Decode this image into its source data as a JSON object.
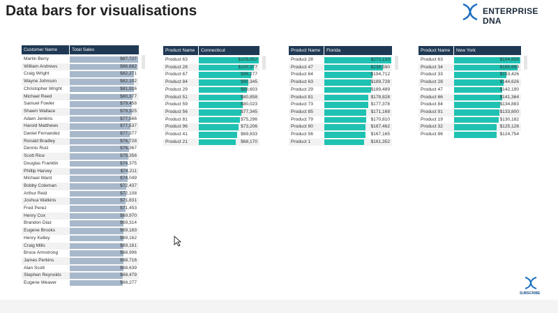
{
  "header": {
    "title": "Data bars for visualisations",
    "logo": "ENTERPRISE DNA",
    "subscribe": "SUBSCRIBE"
  },
  "tables": [
    {
      "columns": [
        "Customer Name",
        "Total Sales"
      ],
      "bar_color": "#a7b8cb",
      "categories": [
        "Martin Berry",
        "William Andrews",
        "Craig Wright",
        "Wayne Johnson",
        "Christopher Wright",
        "Michael Reed",
        "Samuel Fowler",
        "Shawn Wallace",
        "Adam Jenkins",
        "Harold Matthews",
        "Daniel Fernandez",
        "Ronald Bradley",
        "Dennis Ruiz",
        "Scott Rice",
        "Douglas Franklin",
        "Phillip Harvey",
        "Michael Ward",
        "Bobby Coleman",
        "Arthur Reid",
        "Joshua Watkins",
        "Fred Perez",
        "Henry Cox",
        "Brandon Diaz",
        "Eugene Brooks",
        "Henry Kelley",
        "Craig Mills",
        "Bruce Armstrong",
        "James Perkins",
        "Alan Scott",
        "Stephen Reynolds",
        "Eugene Weaver"
      ],
      "values": [
        87727,
        86682,
        82271,
        82102,
        81916,
        80377,
        79458,
        79325,
        77566,
        77537,
        77377,
        76728,
        76367,
        75356,
        74375,
        74211,
        74049,
        72437,
        72108,
        71831,
        71453,
        69970,
        69314,
        69183,
        69162,
        69161,
        68996,
        68716,
        68639,
        68479,
        68277
      ],
      "value_labels": [
        "$87,727",
        "$86,682",
        "$82,271",
        "$82,102",
        "$81,916",
        "$80,377",
        "$79,458",
        "$79,325",
        "$77,566",
        "$77,537",
        "$77,377",
        "$76,728",
        "$76,367",
        "$75,356",
        "$74,375",
        "$74,211",
        "$74,049",
        "$72,437",
        "$72,108",
        "$71,831",
        "$71,453",
        "$69,970",
        "$69,314",
        "$69,183",
        "$69,162",
        "$69,161",
        "$68,996",
        "$68,716",
        "$68,639",
        "$68,479",
        "$68,277"
      ]
    },
    {
      "columns": [
        "Product Name",
        "Connecticut"
      ],
      "bar_color": "#1fc2b2",
      "categories": [
        "Product 63",
        "Product 28",
        "Product 67",
        "Product 84",
        "Product 29",
        "Product 51",
        "Product 59",
        "Product 56",
        "Product 81",
        "Product 96",
        "Product 41",
        "Product 21"
      ],
      "values": [
        109852,
        100377,
        96277,
        90345,
        88603,
        80858,
        80023,
        77345,
        75296,
        73206,
        69833,
        68170
      ],
      "value_labels": [
        "$109,852",
        "$100,377",
        "$96,277",
        "$90,345",
        "$88,603",
        "$80,858",
        "$80,023",
        "$77,345",
        "$75,296",
        "$73,206",
        "$69,833",
        "$68,170"
      ]
    },
    {
      "columns": [
        "Product Name",
        "Florida"
      ],
      "bar_color": "#1fc2b2",
      "categories": [
        "Product 28",
        "Product 47",
        "Product 64",
        "Product 63",
        "Product 29",
        "Product 81",
        "Product 73",
        "Product 85",
        "Product 79",
        "Product 90",
        "Product 56",
        "Product 1"
      ],
      "values": [
        272133,
        238590,
        194712,
        189728,
        189489,
        178828,
        177378,
        171168,
        170810,
        167462,
        167165,
        161352
      ],
      "value_labels": [
        "$272,133",
        "$238,590",
        "$194,712",
        "$189,728",
        "$189,489",
        "$178,828",
        "$177,378",
        "$171,168",
        "$170,810",
        "$167,462",
        "$167,165",
        "$161,352"
      ]
    },
    {
      "columns": [
        "Product Name",
        "New York"
      ],
      "bar_color": "#1fc2b2",
      "categories": [
        "Product 63",
        "Product 34",
        "Product 33",
        "Product 28",
        "Product 47",
        "Product 66",
        "Product 84",
        "Product 91",
        "Product 19",
        "Product 32",
        "Product 86"
      ],
      "values": [
        194658,
        185650,
        153426,
        144626,
        142190,
        141364,
        134883,
        133800,
        130182,
        125126,
        124754
      ],
      "value_labels": [
        "$194,658",
        "$185,650",
        "$153,426",
        "$144,626",
        "$142,190",
        "$141,364",
        "$134,883",
        "$133,800",
        "$130,182",
        "$125,126",
        "$124,754"
      ]
    }
  ]
}
